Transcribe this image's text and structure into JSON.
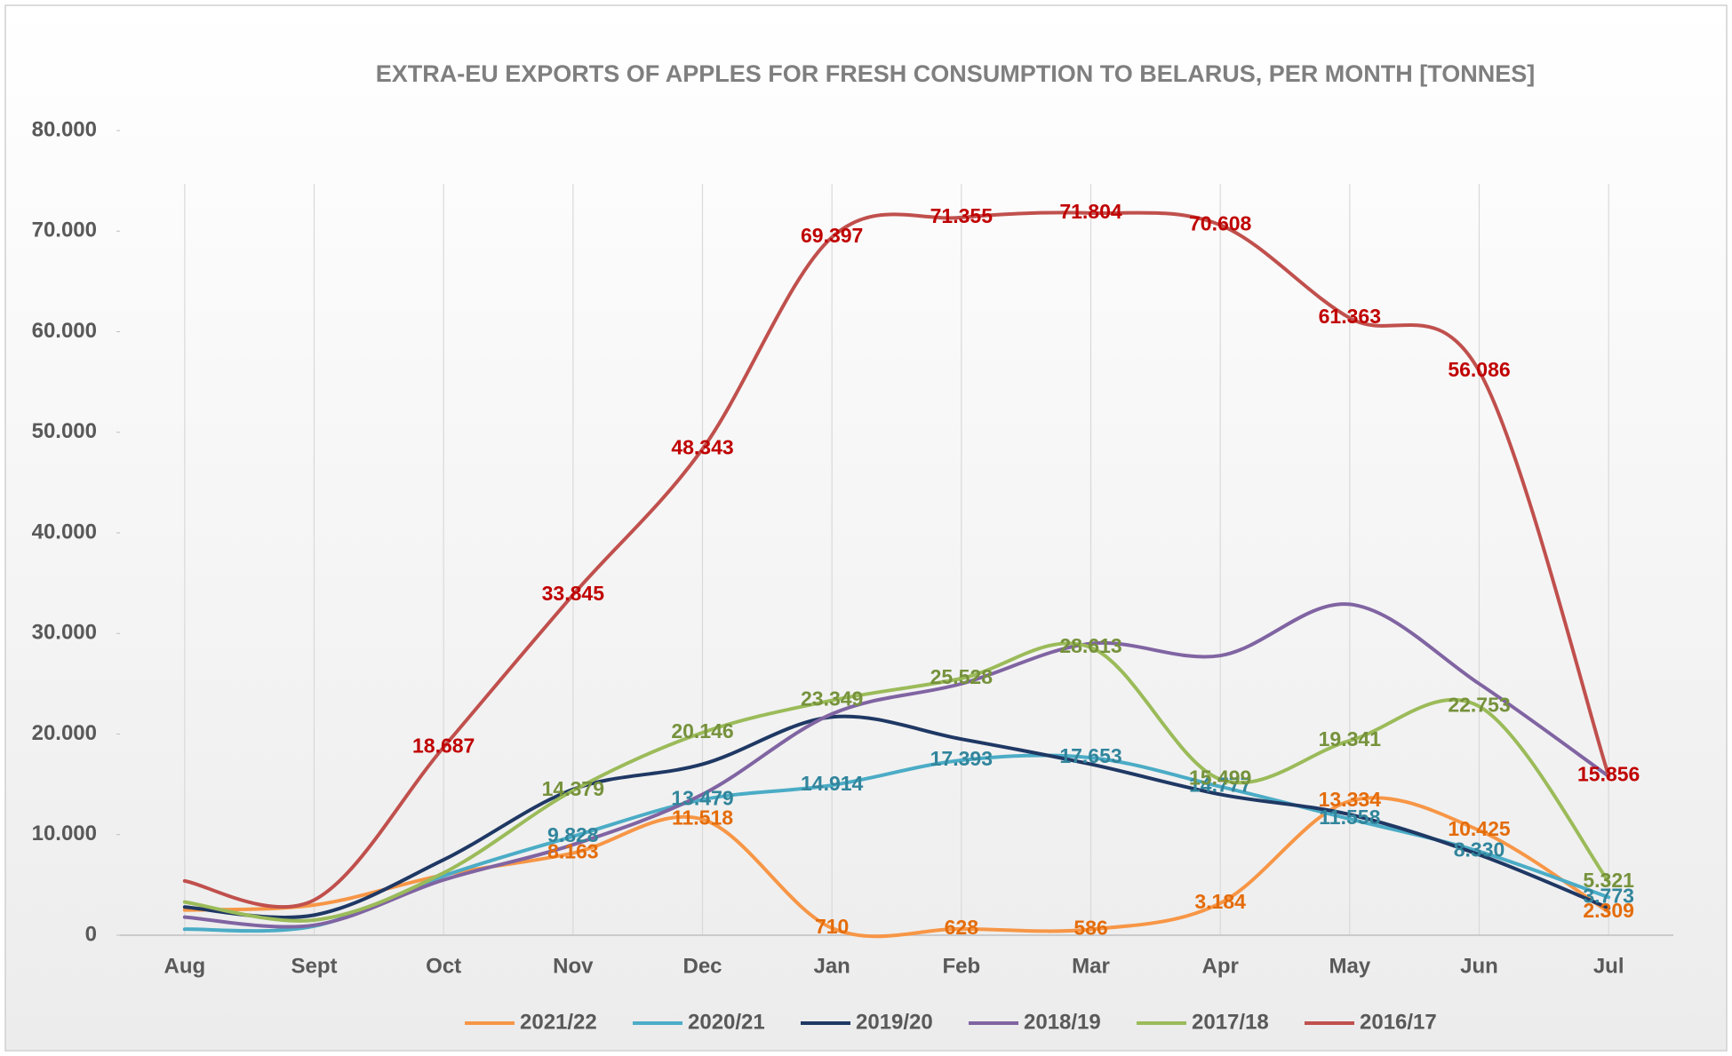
{
  "chart_data": {
    "type": "line",
    "title": "EXTRA-EU EXPORTS OF APPLES FOR FRESH CONSUMPTION TO BELARUS, PER MONTH [TONNES]",
    "categories": [
      "Aug",
      "Sept",
      "Oct",
      "Nov",
      "Dec",
      "Jan",
      "Feb",
      "Mar",
      "Apr",
      "May",
      "Jun",
      "Jul"
    ],
    "ylim": [
      0,
      80000
    ],
    "yticks": [
      {
        "value": 0,
        "label": "0"
      },
      {
        "value": 10000,
        "label": "10.000"
      },
      {
        "value": 20000,
        "label": "20.000"
      },
      {
        "value": 30000,
        "label": "30.000"
      },
      {
        "value": 40000,
        "label": "40.000"
      },
      {
        "value": 50000,
        "label": "50.000"
      },
      {
        "value": 60000,
        "label": "60.000"
      },
      {
        "value": 70000,
        "label": "70.000"
      },
      {
        "value": 80000,
        "label": "80.000"
      }
    ],
    "smooth": true,
    "legend": "bottom",
    "series": [
      {
        "name": "2021/22",
        "color": "#f79646",
        "label_color": "#e46c0a",
        "values": [
          2500,
          3000,
          6000,
          8163,
          11518,
          710,
          628,
          586,
          3184,
          13334,
          10425,
          2309
        ],
        "value_labels": [
          null,
          null,
          null,
          "8.163",
          "11.518",
          "710",
          "628",
          "586",
          "3.184",
          "13.334",
          "10.425",
          "2.309"
        ]
      },
      {
        "name": "2020/21",
        "color": "#4bacc6",
        "label_color": "#31859c",
        "values": [
          600,
          900,
          5900,
          9828,
          13479,
          14914,
          17393,
          17653,
          14777,
          11558,
          8330,
          3773
        ],
        "value_labels": [
          null,
          null,
          null,
          "9.828",
          "13.479",
          "14.914",
          "17.393",
          "17.653",
          "14.777",
          "11.558",
          "8.330",
          "3.773"
        ]
      },
      {
        "name": "2019/20",
        "color": "#1f3864",
        "values": [
          2800,
          2000,
          7500,
          14500,
          17000,
          21700,
          19500,
          17000,
          14000,
          12000,
          8000,
          2700
        ]
      },
      {
        "name": "2018/19",
        "color": "#8064a2",
        "values": [
          1800,
          1000,
          5500,
          9000,
          14000,
          22000,
          25000,
          29000,
          27800,
          32900,
          25000,
          15800
        ]
      },
      {
        "name": "2017/18",
        "color": "#9bbb59",
        "label_color": "#76923c",
        "values": [
          3300,
          1500,
          6200,
          14379,
          20146,
          23349,
          25528,
          28613,
          15499,
          19341,
          22753,
          5321
        ],
        "value_labels": [
          null,
          null,
          null,
          "14.379",
          "20.146",
          "23.349",
          "25.528",
          "28.613",
          "15.499",
          "19.341",
          "22.753",
          "5.321"
        ]
      },
      {
        "name": "2016/17",
        "color": "#c0504d",
        "label_color": "#c00000",
        "values": [
          5400,
          3500,
          18687,
          33845,
          48343,
          69397,
          71355,
          71804,
          70608,
          61363,
          56086,
          15856
        ],
        "value_labels": [
          null,
          null,
          "18.687",
          "33.845",
          "48.343",
          "69.397",
          "71.355",
          "71.804",
          "70.608",
          "61.363",
          "56.086",
          "15.856"
        ]
      }
    ]
  }
}
